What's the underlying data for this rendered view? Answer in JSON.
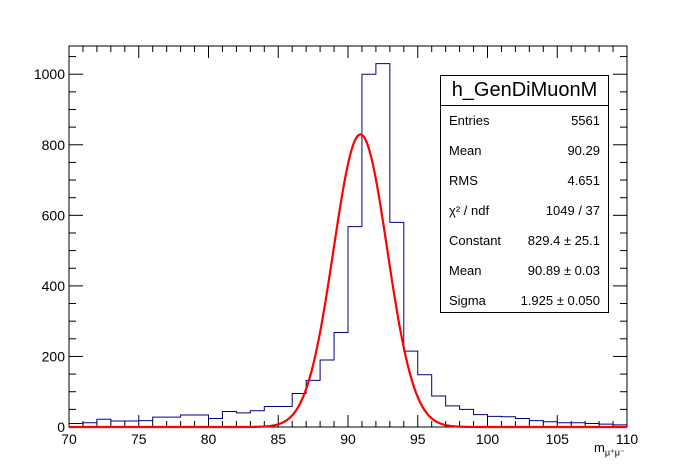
{
  "chart_data": {
    "type": "bar",
    "histogram_name": "h_GenDiMuonM",
    "xlabel": "m",
    "xlabel_subscript": "μ⁺μ⁻",
    "xlim": [
      70,
      110
    ],
    "ylim": [
      0,
      1080
    ],
    "x_ticks": [
      "70",
      "75",
      "80",
      "85",
      "90",
      "95",
      "100",
      "105",
      "110"
    ],
    "y_ticks": [
      "0",
      "200",
      "400",
      "600",
      "800",
      "1000"
    ],
    "bin_width": 1,
    "bin_low_edges": [
      70,
      71,
      72,
      73,
      74,
      75,
      76,
      77,
      78,
      79,
      80,
      81,
      82,
      83,
      84,
      85,
      86,
      87,
      88,
      89,
      90,
      91,
      92,
      93,
      94,
      95,
      96,
      97,
      98,
      99,
      100,
      101,
      102,
      103,
      104,
      105,
      106,
      107,
      108,
      109
    ],
    "values": [
      10,
      12,
      22,
      17,
      17,
      18,
      28,
      28,
      34,
      34,
      24,
      44,
      40,
      46,
      58,
      58,
      95,
      132,
      190,
      268,
      568,
      1000,
      1030,
      580,
      215,
      148,
      88,
      60,
      50,
      35,
      30,
      29,
      24,
      18,
      15,
      12,
      12,
      10,
      8,
      6
    ],
    "histogram_color": "#000080",
    "fit": {
      "function": "gaus",
      "constant": 829.4,
      "mean": 90.89,
      "sigma": 1.925,
      "color": "#ff0000"
    },
    "stats": {
      "title": "h_GenDiMuonM",
      "rows": [
        {
          "label": "Entries",
          "value": "5561"
        },
        {
          "label": "Mean",
          "value": "90.29"
        },
        {
          "label": "RMS",
          "value": "4.651"
        },
        {
          "label": "χ² / ndf",
          "value": "1049 / 37"
        },
        {
          "label": "Constant",
          "value": "829.4 ± 25.1"
        },
        {
          "label": "Mean",
          "value": "90.89 ± 0.03"
        },
        {
          "label": "Sigma",
          "value": "1.925 ± 0.050"
        }
      ]
    }
  }
}
